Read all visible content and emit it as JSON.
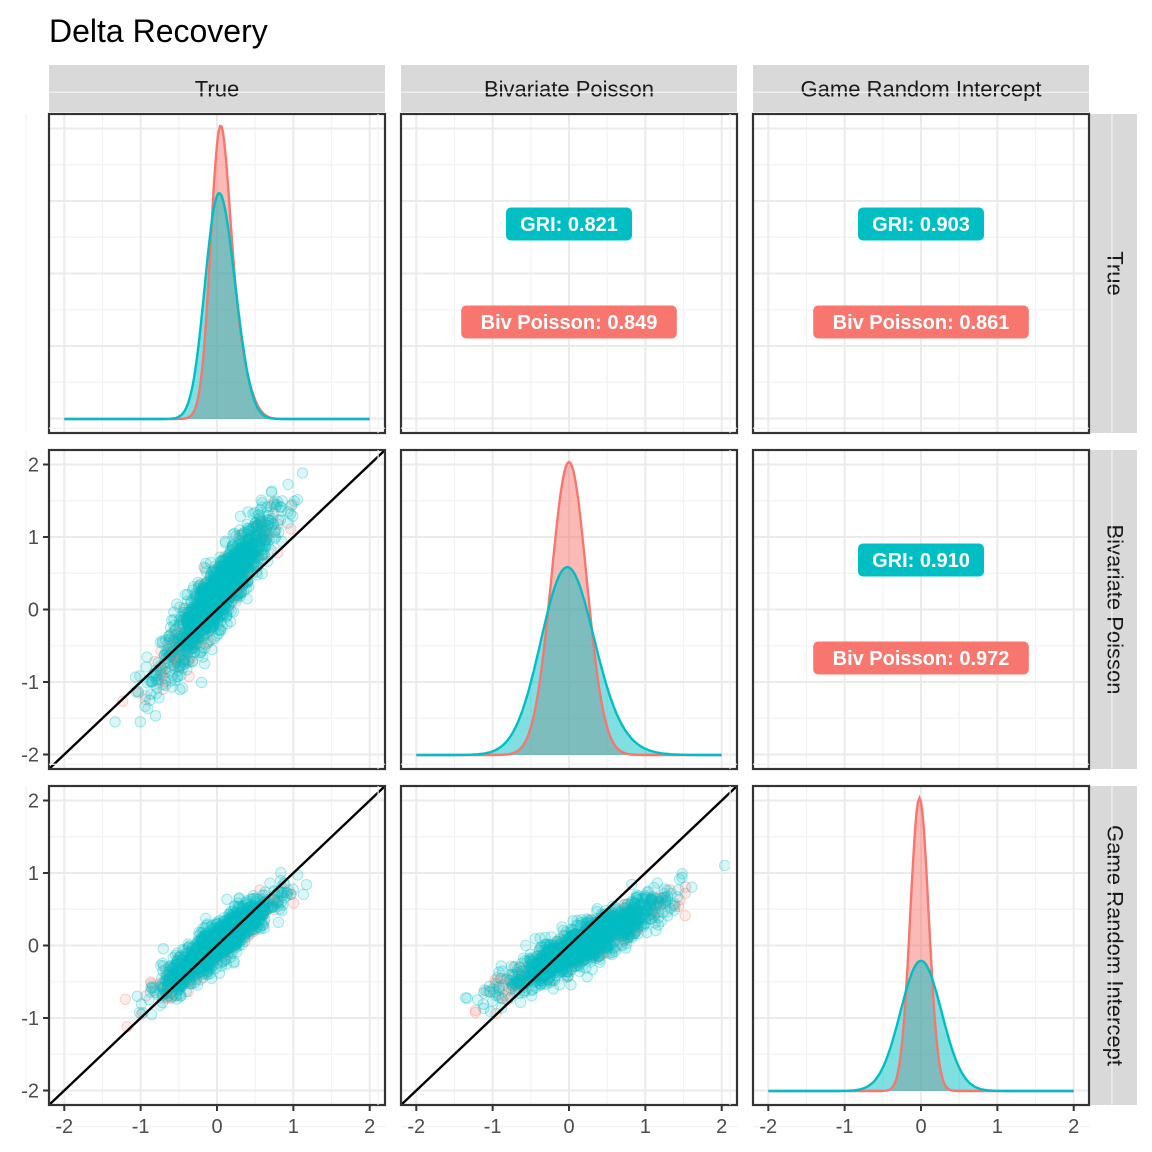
{
  "chart_data": {
    "type": "scatter",
    "title": "Delta Recovery",
    "variables": [
      "True",
      "Bivariate Poisson",
      "Game Random Intercept"
    ],
    "axis_range": [
      -2.2,
      2.2
    ],
    "ticks": [
      -2,
      -1,
      0,
      1,
      2
    ],
    "tick_labels": [
      "-2",
      "-1",
      "0",
      "1",
      "2"
    ],
    "grid": true,
    "groups": [
      {
        "name": "Biv Poisson",
        "color": "#F8766D"
      },
      {
        "name": "GRI",
        "color": "#00BFC4"
      }
    ],
    "diagonal_density_peak": {
      "True": {
        "Biv Poisson": 0.1,
        "GRI": 0.0
      },
      "Bivariate Poisson": {
        "Biv Poisson": 0.0,
        "GRI": -0.05
      },
      "Game Random Intercept": {
        "Biv Poisson": -0.02,
        "GRI": 0.0
      }
    },
    "correlations": [
      {
        "row": "True",
        "col": "Bivariate Poisson",
        "gri_label": "GRI: 0.821",
        "biv_label": "Biv Poisson: 0.849",
        "GRI": 0.821,
        "Biv Poisson": 0.849
      },
      {
        "row": "True",
        "col": "Game Random Intercept",
        "gri_label": "GRI: 0.903",
        "biv_label": "Biv Poisson: 0.861",
        "GRI": 0.903,
        "Biv Poisson": 0.861
      },
      {
        "row": "Bivariate Poisson",
        "col": "Game Random Intercept",
        "gri_label": "GRI: 0.910",
        "biv_label": "Biv Poisson: 0.972",
        "GRI": 0.91,
        "Biv Poisson": 0.972
      }
    ],
    "scatter_panels": [
      {
        "x": "True",
        "y": "Bivariate Poisson",
        "reference_line": "y = x",
        "x_range_observed": [
          -1.1,
          1.1
        ],
        "y_range_observed": [
          -1.4,
          1.8
        ]
      },
      {
        "x": "True",
        "y": "Game Random Intercept",
        "reference_line": "y = x",
        "x_range_observed": [
          -1.1,
          1.1
        ],
        "y_range_observed": [
          -0.95,
          1.0
        ]
      },
      {
        "x": "Bivariate Poisson",
        "y": "Game Random Intercept",
        "reference_line": "y = x",
        "x_range_observed": [
          -1.4,
          1.8
        ],
        "y_range_observed": [
          -0.95,
          1.0
        ]
      }
    ]
  }
}
